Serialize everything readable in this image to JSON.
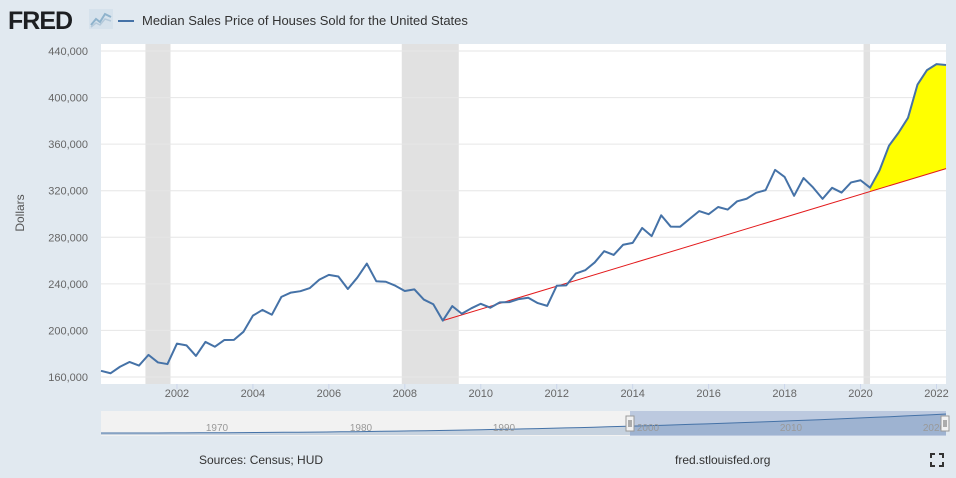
{
  "header": {
    "logo_text": "FRED",
    "legend_label": "Median Sales Price of Houses Sold for the United States"
  },
  "footer": {
    "source": "Sources: Census; HUD",
    "site": "fred.stlouisfed.org"
  },
  "navigator": {
    "tick_labels": [
      "1970",
      "1980",
      "1990",
      "2000",
      "2010",
      "2020"
    ]
  },
  "colors": {
    "series": "#4572a7",
    "trend": "#e31a1c",
    "fill": "#ffff00",
    "recession": "#e1e1e1"
  },
  "icons": [
    "fred-chart-icon",
    "fullscreen-icon"
  ],
  "chart_data": {
    "type": "line",
    "title": "",
    "xlabel": "",
    "ylabel": "Dollars",
    "ylim": [
      160000,
      440000
    ],
    "xlim": [
      2000.0,
      2022.25
    ],
    "grid": true,
    "legend": "top-left",
    "x_ticks": [
      2002,
      2004,
      2006,
      2008,
      2010,
      2012,
      2014,
      2016,
      2018,
      2020,
      2022
    ],
    "x_tick_labels": [
      "2002",
      "2004",
      "2006",
      "2008",
      "2010",
      "2012",
      "2014",
      "2016",
      "2018",
      "2020",
      "2022"
    ],
    "y_ticks": [
      160000,
      200000,
      240000,
      280000,
      320000,
      360000,
      400000,
      440000
    ],
    "y_tick_labels": [
      "160,000",
      "200,000",
      "240,000",
      "280,000",
      "320,000",
      "360,000",
      "400,000",
      "440,000"
    ],
    "recessions": [
      [
        2001.17,
        2001.83
      ],
      [
        2007.92,
        2009.42
      ],
      [
        2020.08,
        2020.25
      ]
    ],
    "series": [
      {
        "name": "Median Sales Price of Houses Sold for the United States",
        "x": [
          2000.0,
          2000.25,
          2000.5,
          2000.75,
          2001.0,
          2001.25,
          2001.5,
          2001.75,
          2002.0,
          2002.25,
          2002.5,
          2002.75,
          2003.0,
          2003.25,
          2003.5,
          2003.75,
          2004.0,
          2004.25,
          2004.5,
          2004.75,
          2005.0,
          2005.25,
          2005.5,
          2005.75,
          2006.0,
          2006.25,
          2006.5,
          2006.75,
          2007.0,
          2007.25,
          2007.5,
          2007.75,
          2008.0,
          2008.25,
          2008.5,
          2008.75,
          2009.0,
          2009.25,
          2009.5,
          2009.75,
          2010.0,
          2010.25,
          2010.5,
          2010.75,
          2011.0,
          2011.25,
          2011.5,
          2011.75,
          2012.0,
          2012.25,
          2012.5,
          2012.75,
          2013.0,
          2013.25,
          2013.5,
          2013.75,
          2014.0,
          2014.25,
          2014.5,
          2014.75,
          2015.0,
          2015.25,
          2015.5,
          2015.75,
          2016.0,
          2016.25,
          2016.5,
          2016.75,
          2017.0,
          2017.25,
          2017.5,
          2017.75,
          2018.0,
          2018.25,
          2018.5,
          2018.75,
          2019.0,
          2019.25,
          2019.5,
          2019.75,
          2020.0,
          2020.25,
          2020.5,
          2020.75,
          2021.0,
          2021.25,
          2021.5,
          2021.75,
          2022.0,
          2022.25
        ],
        "values": [
          165300,
          163200,
          168800,
          172900,
          169800,
          179000,
          172500,
          171100,
          188700,
          187200,
          178100,
          190100,
          186000,
          191800,
          191900,
          198800,
          212700,
          217600,
          213500,
          228800,
          232500,
          233700,
          236400,
          243600,
          247700,
          246300,
          235600,
          245400,
          257400,
          242200,
          241800,
          238400,
          233900,
          235300,
          226500,
          222500,
          208400,
          220900,
          214300,
          219000,
          222900,
          219500,
          224100,
          224300,
          226900,
          228100,
          223500,
          221100,
          238400,
          238700,
          248800,
          251700,
          258400,
          268100,
          264800,
          273600,
          275200,
          288000,
          281000,
          298900,
          289200,
          289100,
          295800,
          302500,
          299800,
          306000,
          303800,
          310900,
          313100,
          318200,
          320500,
          337900,
          331800,
          315600,
          330900,
          322800,
          313000,
          322500,
          318400,
          327100,
          329000,
          322600,
          337500,
          358700,
          369800,
          382600,
          411200,
          423600,
          428700,
          428000
        ]
      }
    ],
    "trend_line": {
      "x": [
        2009.0,
        2022.25
      ],
      "y": [
        208400,
        339000
      ]
    },
    "highlight": {
      "label": "",
      "x_start": 2020.25,
      "x_end": 2022.25
    }
  }
}
